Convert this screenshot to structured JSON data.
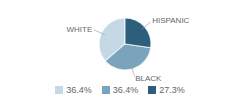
{
  "chart_data": {
    "type": "pie",
    "categories": [
      "WHITE",
      "BLACK",
      "HISPANIC"
    ],
    "values": [
      36.4,
      36.4,
      27.3
    ],
    "value_labels": [
      "36.4%",
      "36.4%",
      "27.3%"
    ],
    "colors": [
      "#c5d8e6",
      "#7aa3bc",
      "#2d5f7c"
    ],
    "legend": "bottom"
  }
}
